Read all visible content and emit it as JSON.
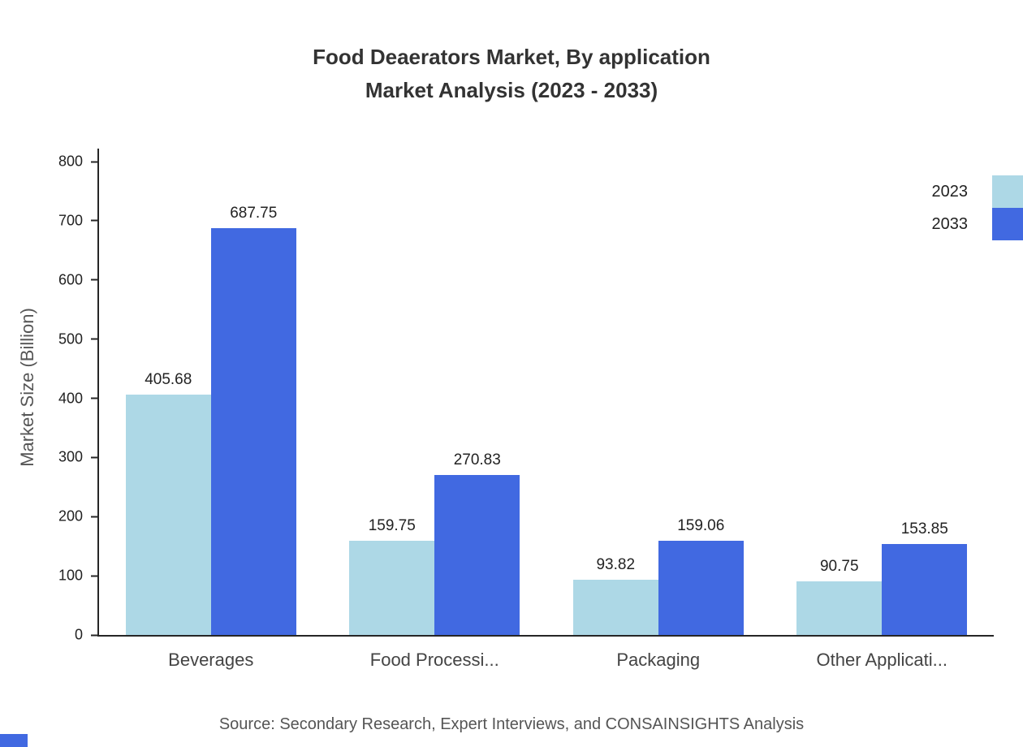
{
  "chart_data": {
    "type": "bar",
    "title_line1": "Food Deaerators Market, By application",
    "title_line2": "Market Analysis (2023 - 2033)",
    "ylabel": "Market Size (Billion)",
    "xlabel": "",
    "categories": [
      "Beverages",
      "Food Processi...",
      "Packaging",
      "Other Applicati..."
    ],
    "series": [
      {
        "name": "2023",
        "color": "#add8e6",
        "values": [
          405.68,
          159.75,
          93.82,
          90.75
        ]
      },
      {
        "name": "2033",
        "color": "#4169e1",
        "values": [
          687.75,
          270.83,
          159.06,
          153.85
        ]
      }
    ],
    "ylim": [
      0,
      800
    ],
    "ytick_step": 100,
    "grid": false,
    "legend_position": "top-right"
  },
  "source": "Source: Secondary Research, Expert Interviews, and CONSAINSIGHTS Analysis",
  "colors": {
    "series_2023": "#add8e6",
    "series_2033": "#4169e1",
    "axis": "#262626",
    "corner_mark": "#4169e1"
  }
}
